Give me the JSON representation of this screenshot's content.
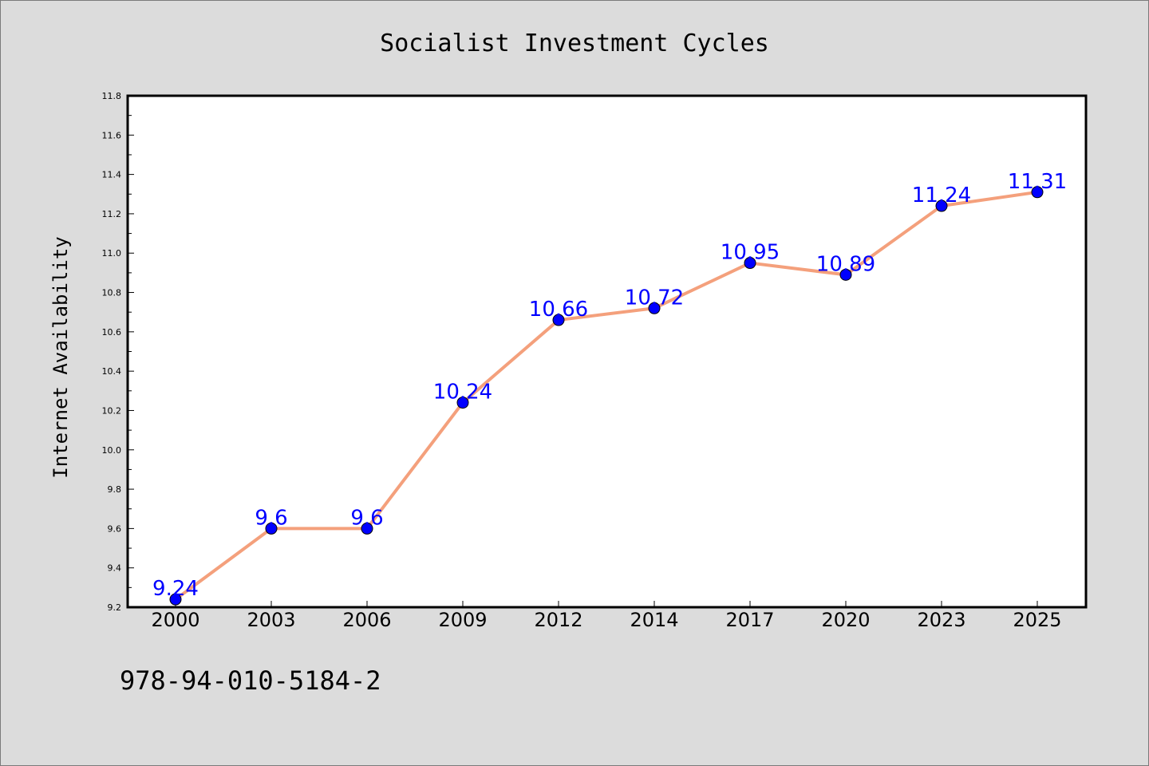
{
  "chart_data": {
    "type": "line",
    "title": "Socialist Investment Cycles",
    "xlabel": "",
    "ylabel": "Internet Availability",
    "categories": [
      "2000",
      "2003",
      "2006",
      "2009",
      "2012",
      "2014",
      "2017",
      "2020",
      "2023",
      "2025"
    ],
    "series": [
      {
        "values": [
          9.24,
          9.6,
          9.6,
          10.24,
          10.66,
          10.72,
          10.95,
          10.89,
          11.24,
          11.31
        ],
        "labels": [
          "9.24",
          "9.6",
          "9.6",
          "10.24",
          "10.66",
          "10.72",
          "10.95",
          "10.89",
          "11.24",
          "11.31"
        ]
      }
    ],
    "ylim": [
      9.2,
      11.8
    ],
    "yticks": [
      "9.2",
      "9.4",
      "9.6",
      "9.8",
      "10.0",
      "10.2",
      "10.4",
      "10.6",
      "10.8",
      "11.0",
      "11.2",
      "11.4",
      "11.6",
      "11.8"
    ],
    "grid": false,
    "line_color": "#f4a07c",
    "marker_color": "#0000ff",
    "label_color": "#0000ff",
    "background_color": "#dcdcdc",
    "plot_background_color": "#ffffff"
  },
  "footer": {
    "isbn": "978-94-010-5184-2"
  }
}
